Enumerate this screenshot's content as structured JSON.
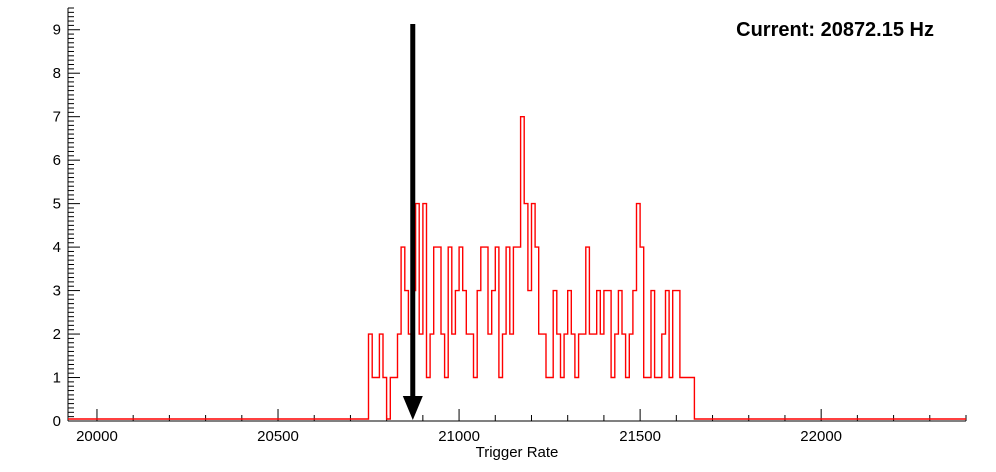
{
  "annotation": {
    "current_label": "Current: 20872.15 Hz"
  },
  "chart_data": {
    "type": "bar",
    "subtype": "step-histogram",
    "title": "",
    "xlabel": "Trigger Rate",
    "ylabel": "",
    "xlim": [
      19920,
      22400
    ],
    "ylim": [
      0,
      9.5
    ],
    "grid": false,
    "legend_position": "none",
    "x_major_ticks": [
      20000,
      20500,
      21000,
      21500,
      22000
    ],
    "x_minor_step": 100,
    "y_major_ticks": [
      0,
      1,
      2,
      3,
      4,
      5,
      6,
      7,
      8,
      9
    ],
    "y_minor_per_major": 10,
    "series_color": "#ff0000",
    "axis_color": "#000000",
    "bin_start": 20700,
    "bin_width": 10,
    "counts": [
      0,
      0,
      0,
      0,
      0,
      2,
      1,
      1,
      2,
      1,
      0,
      1,
      1,
      2,
      4,
      3,
      2,
      3,
      5,
      2,
      5,
      1,
      2,
      4,
      4,
      2,
      1,
      4,
      2,
      3,
      4,
      3,
      2,
      2,
      1,
      3,
      4,
      4,
      2,
      3,
      4,
      1,
      2,
      4,
      2,
      4,
      4,
      7,
      5,
      3,
      5,
      4,
      2,
      2,
      1,
      1,
      3,
      2,
      1,
      2,
      3,
      2,
      1,
      2,
      2,
      4,
      2,
      2,
      3,
      2,
      3,
      3,
      1,
      2,
      3,
      2,
      1,
      2,
      3,
      5,
      4,
      1,
      1,
      3,
      1,
      1,
      2,
      3,
      1,
      3,
      3,
      1,
      1,
      1,
      1,
      0,
      0,
      0,
      0,
      0
    ],
    "arrow": {
      "x": 20872.15,
      "color": "#000000"
    },
    "current_value_hz": 20872.15
  }
}
